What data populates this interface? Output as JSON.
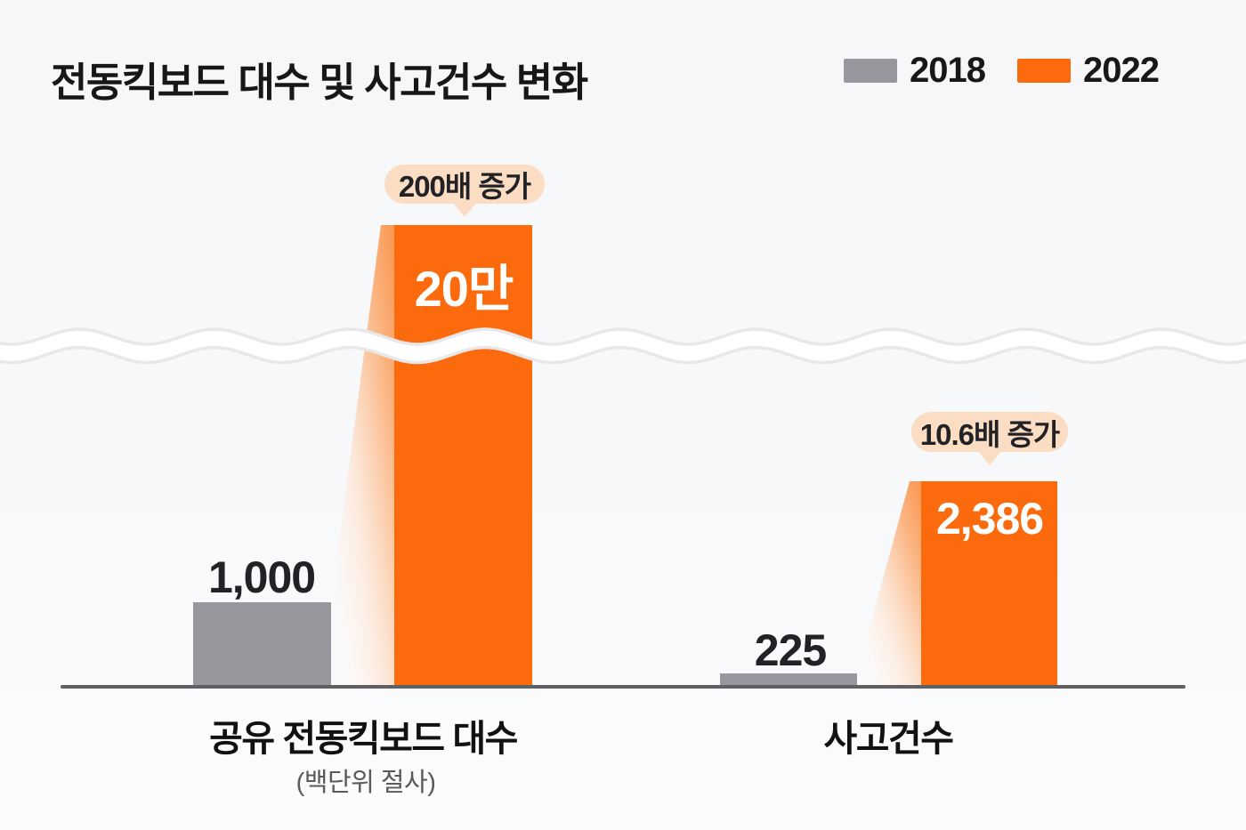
{
  "title": "전동킥보드 대수 및 사고건수 변화",
  "legend": {
    "items": [
      {
        "label": "2018",
        "color": "#97979E"
      },
      {
        "label": "2022",
        "color": "#FB6B0D"
      }
    ]
  },
  "groups": [
    {
      "category": "공유 전동킥보드 대수",
      "note": "(백단위 절사)",
      "callout": "200배 증가",
      "value_2018_label": "1,000",
      "value_2022_label": "20만"
    },
    {
      "category": "사고건수",
      "note": "",
      "callout": "10.6배 증가",
      "value_2018_label": "225",
      "value_2022_label": "2,386"
    }
  ],
  "chart_data": {
    "type": "bar",
    "title": "전동킥보드 대수 및 사고건수 변화",
    "categories": [
      "공유 전동킥보드 대수",
      "사고건수"
    ],
    "category_notes": [
      "(백단위 절사)",
      ""
    ],
    "series": [
      {
        "name": "2018",
        "color": "#97979E",
        "values": [
          1000,
          225
        ],
        "value_labels": [
          "1,000",
          "225"
        ]
      },
      {
        "name": "2022",
        "color": "#FB6B0D",
        "values": [
          200000,
          2386
        ],
        "value_labels": [
          "20만",
          "2,386"
        ]
      }
    ],
    "annotations": [
      {
        "category": "공유 전동킥보드 대수",
        "text": "200배 증가",
        "multiplier": 200
      },
      {
        "category": "사고건수",
        "text": "10.6배 증가",
        "multiplier": 10.6
      }
    ],
    "legend_position": "top-right",
    "grid": false,
    "axis_break": true,
    "axis_break_style": "wavy white ribbon across full width cutting the tall 2022 bar",
    "bars_not_to_scale": true
  },
  "colors": {
    "orange": "#FB6B0D",
    "gray": "#97979E",
    "peach": "#FBDDC3",
    "baseline": "#5F5F64",
    "background": "#F7F8FA",
    "text-dark": "#1A1A1E",
    "text-sub": "#59595E",
    "wave-line": "#E8E8EB"
  }
}
